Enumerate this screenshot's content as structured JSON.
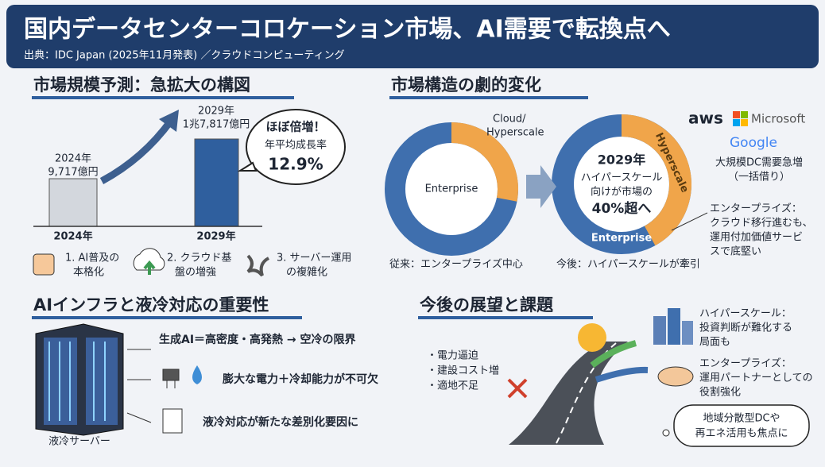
{
  "header": {
    "title": "国内データセンターコロケーション市場、AI需要で転換点へ",
    "source": "出典：IDC Japan (2025年11月発表) ／クラウドコンピューティング"
  },
  "market_size": {
    "heading": "市場規模予測：急拡大の構図",
    "bars": [
      {
        "year": "2024年",
        "amount": "9,717億円",
        "value": 9717,
        "x_label": "2024年"
      },
      {
        "year": "2029年",
        "amount": "1兆7,817億円",
        "value": 17817,
        "x_label": "2029年"
      }
    ],
    "callout": [
      "ほぼ倍増！",
      "年平均成長率",
      "12.9%"
    ],
    "drivers": [
      [
        "1. AI普及の",
        "本格化"
      ],
      [
        "2. クラウド基",
        "盤の増強"
      ],
      [
        "3. サーバー運用",
        "の複雑化"
      ]
    ]
  },
  "structure": {
    "heading": "市場構造の劇的変化",
    "before": {
      "enterprise": "Enterprise",
      "cloud": [
        "Cloud/",
        "Hyperscale"
      ],
      "cloud_share": 28,
      "caption": "従来：エンタープライズ中心"
    },
    "after": {
      "center": [
        "2029年",
        "ハイパースケール",
        "向けが市場の",
        "40%超へ"
      ],
      "hyperscale": "Hyperscale",
      "enterprise": "Enterprise",
      "hyperscale_share": 42,
      "caption": "今後：ハイパースケールが牽引"
    },
    "logos": [
      "aws",
      "Microsoft",
      "Google"
    ],
    "demand": [
      "大規模DC需要急増",
      "（一括借り）"
    ],
    "enterprise_note": [
      "エンタープライズ：",
      "クラウド移行進むも、",
      "運用付加価値サービ",
      "スで底堅い"
    ]
  },
  "ai_infra": {
    "heading": "AIインフラと液冷対応の重要性",
    "points": [
      "生成AI＝高密度・高発熱 → 空冷の限界",
      "膨大な電力＋冷却能力が不可欠",
      "液冷対応が新たな差別化要因に"
    ],
    "server_label": "液冷サーバー"
  },
  "outlook": {
    "heading": "今後の展望と課題",
    "challenges": [
      "・電力逼迫",
      "・建設コスト増",
      "・適地不足"
    ],
    "hyperscale": [
      "ハイパースケール：",
      "投資判断が難化する",
      "局面も"
    ],
    "enterprise": [
      "エンタープライズ：",
      "運用パートナーとしての",
      "役割強化"
    ],
    "focus": [
      "地域分散型DCや",
      "再エネ活用も焦点に"
    ]
  }
}
